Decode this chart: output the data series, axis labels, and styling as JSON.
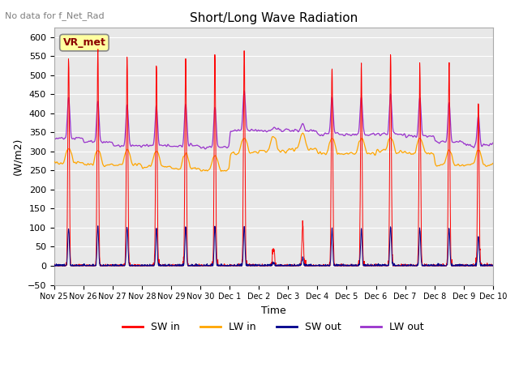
{
  "title": "Short/Long Wave Radiation",
  "subtitle": "No data for f_Net_Rad",
  "ylabel": "(W/m2)",
  "xlabel": "Time",
  "ylim": [
    -50,
    625
  ],
  "yticks": [
    -50,
    0,
    50,
    100,
    150,
    200,
    250,
    300,
    350,
    400,
    450,
    500,
    550,
    600
  ],
  "colors": {
    "SW_in": "#FF0000",
    "LW_in": "#FFA500",
    "SW_out": "#00008B",
    "LW_out": "#9932CC"
  },
  "tick_labels": [
    "Nov 25",
    "Nov 26",
    "Nov 27",
    "Nov 28",
    "Nov 29",
    "Nov 30",
    "Dec 1",
    "Dec 2",
    "Dec 3",
    "Dec 4",
    "Dec 5",
    "Dec 6",
    "Dec 7",
    "Dec 8",
    "Dec 9",
    "Dec 10"
  ],
  "annotation_text": "VR_met",
  "bg_color": "#E8E8E8",
  "grid_color": "#FFFFFF",
  "SW_in_peaks": [
    550,
    560,
    555,
    530,
    550,
    550,
    565,
    50,
    110,
    525,
    525,
    560,
    530,
    535,
    425
  ],
  "LW_in_base": [
    270,
    265,
    265,
    260,
    255,
    250,
    295,
    300,
    305,
    295,
    295,
    300,
    295,
    265,
    265
  ],
  "LW_out_base": [
    335,
    325,
    315,
    315,
    315,
    310,
    355,
    355,
    355,
    345,
    345,
    345,
    340,
    325,
    315
  ]
}
